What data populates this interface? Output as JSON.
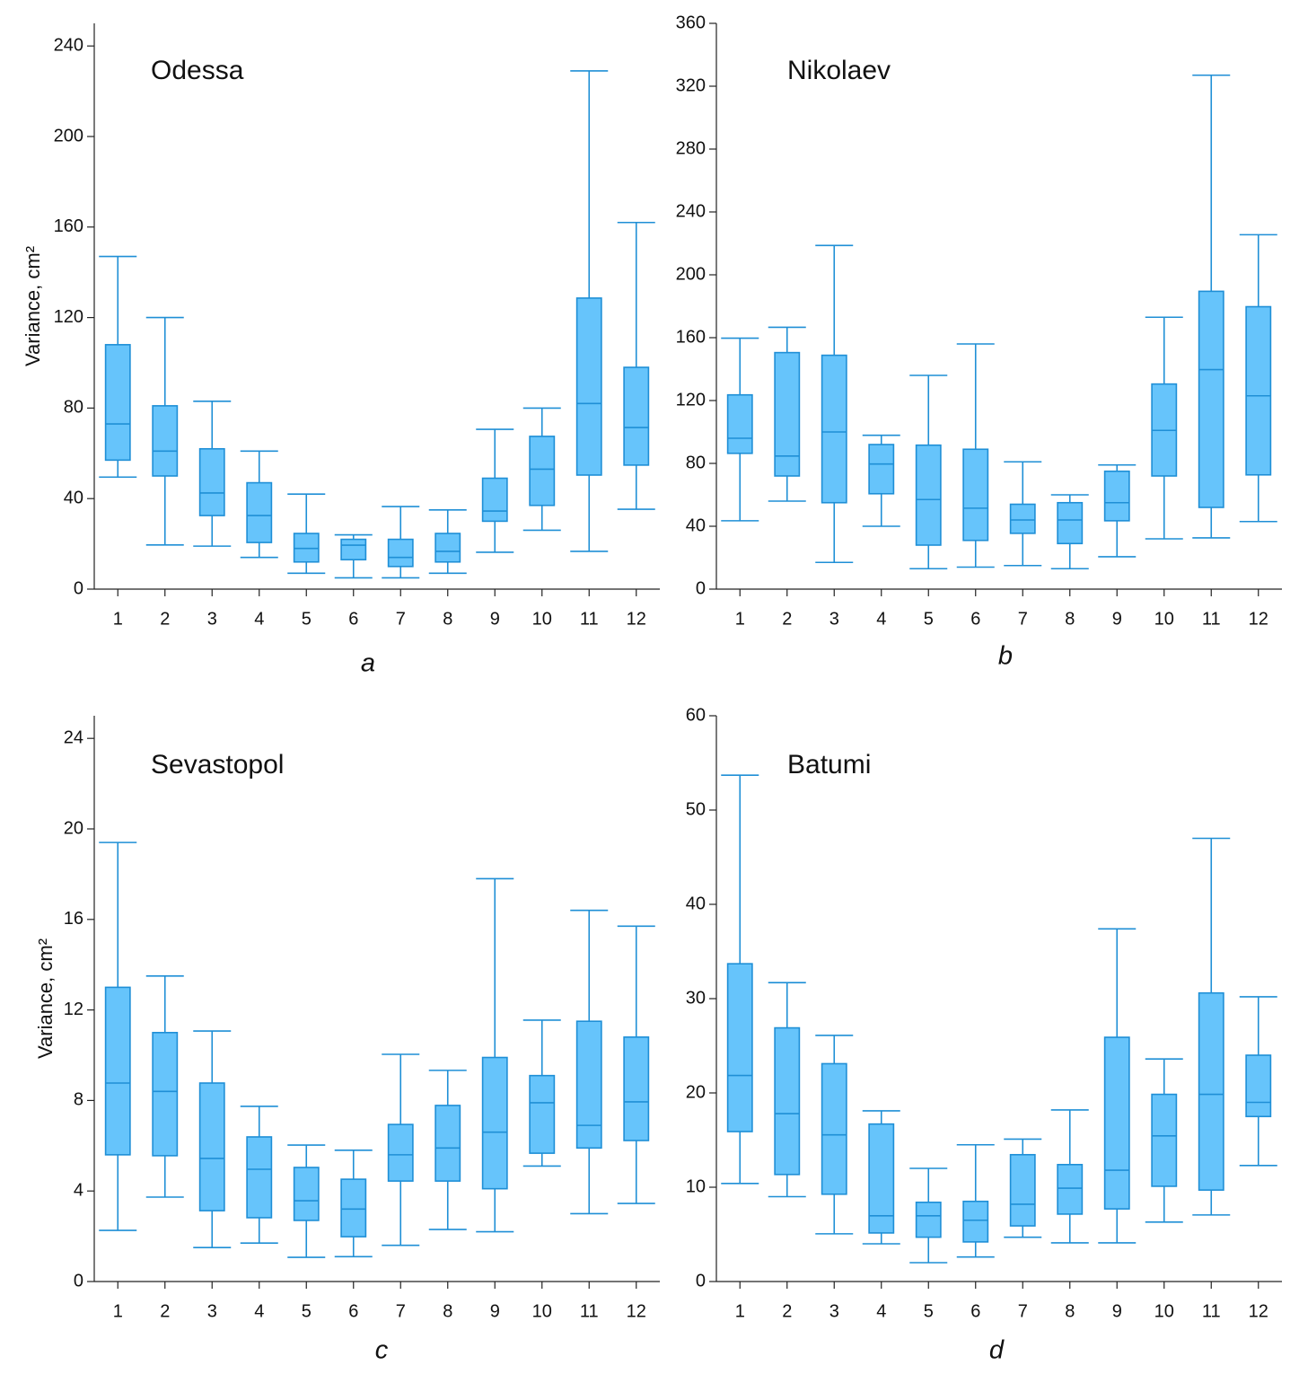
{
  "chart_data": [
    {
      "type": "box",
      "title": "Odessa",
      "label": "a",
      "ylabel": "Variance, cm²",
      "categories": [
        "1",
        "2",
        "3",
        "4",
        "5",
        "6",
        "7",
        "8",
        "9",
        "10",
        "11",
        "12"
      ],
      "color": "#66c4fb",
      "edge_color": "#1f8fd6",
      "ylim": [
        0,
        250
      ],
      "yticks": [
        0,
        40,
        80,
        120,
        160,
        200,
        240
      ],
      "boxes": [
        {
          "min": 49.5,
          "q1": 57,
          "median": 73,
          "q3": 108,
          "max": 147
        },
        {
          "min": 19.5,
          "q1": 50,
          "median": 61,
          "q3": 81,
          "max": 120
        },
        {
          "min": 19,
          "q1": 32.5,
          "median": 42.5,
          "q3": 62,
          "max": 83
        },
        {
          "min": 14,
          "q1": 20.6,
          "median": 32.5,
          "q3": 47,
          "max": 61
        },
        {
          "min": 7,
          "q1": 12,
          "median": 18,
          "q3": 24.6,
          "max": 42
        },
        {
          "min": 5,
          "q1": 13,
          "median": 19.4,
          "q3": 22,
          "max": 24
        },
        {
          "min": 5,
          "q1": 10,
          "median": 14,
          "q3": 22,
          "max": 36.5
        },
        {
          "min": 7,
          "q1": 12,
          "median": 16.7,
          "q3": 24.6,
          "max": 35
        },
        {
          "min": 16.3,
          "q1": 30,
          "median": 34.5,
          "q3": 49,
          "max": 70.6
        },
        {
          "min": 26,
          "q1": 37,
          "median": 53,
          "q3": 67.5,
          "max": 80
        },
        {
          "min": 16.7,
          "q1": 50.4,
          "median": 82,
          "q3": 128.6,
          "max": 229
        },
        {
          "min": 35.3,
          "q1": 54.8,
          "median": 71.4,
          "q3": 98,
          "max": 162
        }
      ]
    },
    {
      "type": "box",
      "title": "Nikolaev",
      "label": "b",
      "categories": [
        "1",
        "2",
        "3",
        "4",
        "5",
        "6",
        "7",
        "8",
        "9",
        "10",
        "11",
        "12"
      ],
      "color": "#66c4fb",
      "edge_color": "#1f8fd6",
      "ylim": [
        0,
        360
      ],
      "yticks": [
        0,
        40,
        80,
        120,
        160,
        200,
        240,
        280,
        320,
        360
      ],
      "boxes": [
        {
          "min": 43.5,
          "q1": 86.4,
          "median": 96,
          "q3": 123.6,
          "max": 159.7
        },
        {
          "min": 56,
          "q1": 72,
          "median": 84.7,
          "q3": 150.5,
          "max": 166.6
        },
        {
          "min": 17,
          "q1": 55,
          "median": 100,
          "q3": 148.8,
          "max": 218.7
        },
        {
          "min": 40,
          "q1": 60.7,
          "median": 79.6,
          "q3": 92,
          "max": 97.9
        },
        {
          "min": 13,
          "q1": 28,
          "median": 57,
          "q3": 91.6,
          "max": 136
        },
        {
          "min": 14,
          "q1": 31,
          "median": 51.5,
          "q3": 89,
          "max": 156
        },
        {
          "min": 15,
          "q1": 35.5,
          "median": 44,
          "q3": 54,
          "max": 81
        },
        {
          "min": 13,
          "q1": 29,
          "median": 44,
          "q3": 55,
          "max": 60
        },
        {
          "min": 20.6,
          "q1": 43.5,
          "median": 55,
          "q3": 75,
          "max": 79
        },
        {
          "min": 32,
          "q1": 72,
          "median": 101,
          "q3": 130.5,
          "max": 173
        },
        {
          "min": 32.6,
          "q1": 52,
          "median": 139.7,
          "q3": 189.5,
          "max": 327
        },
        {
          "min": 43,
          "q1": 72.7,
          "median": 123,
          "q3": 179.7,
          "max": 225.5
        }
      ]
    },
    {
      "type": "box",
      "title": "Sevastopol",
      "label": "c",
      "ylabel": "Variance, cm²",
      "categories": [
        "1",
        "2",
        "3",
        "4",
        "5",
        "6",
        "7",
        "8",
        "9",
        "10",
        "11",
        "12"
      ],
      "color": "#66c4fb",
      "edge_color": "#1f8fd6",
      "ylim": [
        0,
        25
      ],
      "yticks": [
        0,
        4,
        8,
        12,
        16,
        20,
        24
      ],
      "boxes": [
        {
          "min": 2.26,
          "q1": 5.6,
          "median": 8.77,
          "q3": 13,
          "max": 19.4
        },
        {
          "min": 3.73,
          "q1": 5.56,
          "median": 8.4,
          "q3": 11,
          "max": 13.5
        },
        {
          "min": 1.5,
          "q1": 3.13,
          "median": 5.44,
          "q3": 8.77,
          "max": 11.07
        },
        {
          "min": 1.7,
          "q1": 2.82,
          "median": 4.96,
          "q3": 6.39,
          "max": 7.74
        },
        {
          "min": 1.07,
          "q1": 2.7,
          "median": 3.57,
          "q3": 5.04,
          "max": 6.03
        },
        {
          "min": 1.1,
          "q1": 1.98,
          "median": 3.2,
          "q3": 4.52,
          "max": 5.8
        },
        {
          "min": 1.6,
          "q1": 4.44,
          "median": 5.6,
          "q3": 6.94,
          "max": 10.04
        },
        {
          "min": 2.3,
          "q1": 4.44,
          "median": 5.9,
          "q3": 7.78,
          "max": 9.33
        },
        {
          "min": 2.2,
          "q1": 4.1,
          "median": 6.6,
          "q3": 9.9,
          "max": 17.8
        },
        {
          "min": 5.1,
          "q1": 5.67,
          "median": 7.9,
          "q3": 9.1,
          "max": 11.55
        },
        {
          "min": 3.0,
          "q1": 5.9,
          "median": 6.9,
          "q3": 11.5,
          "max": 16.4
        },
        {
          "min": 3.45,
          "q1": 6.23,
          "median": 7.94,
          "q3": 10.8,
          "max": 15.7
        }
      ]
    },
    {
      "type": "box",
      "title": "Batumi",
      "label": "d",
      "categories": [
        "1",
        "2",
        "3",
        "4",
        "5",
        "6",
        "7",
        "8",
        "9",
        "10",
        "11",
        "12"
      ],
      "color": "#66c4fb",
      "edge_color": "#1f8fd6",
      "ylim": [
        0,
        60
      ],
      "yticks": [
        0,
        10,
        20,
        30,
        40,
        50,
        60
      ],
      "boxes": [
        {
          "min": 10.4,
          "q1": 15.9,
          "median": 21.85,
          "q3": 33.7,
          "max": 53.7
        },
        {
          "min": 9,
          "q1": 11.35,
          "median": 17.8,
          "q3": 26.9,
          "max": 31.7
        },
        {
          "min": 5.06,
          "q1": 9.26,
          "median": 15.55,
          "q3": 23.1,
          "max": 26.1
        },
        {
          "min": 4.0,
          "q1": 5.15,
          "median": 6.97,
          "q3": 16.7,
          "max": 18.1
        },
        {
          "min": 2.0,
          "q1": 4.7,
          "median": 6.97,
          "q3": 8.4,
          "max": 12.0
        },
        {
          "min": 2.6,
          "q1": 4.2,
          "median": 6.5,
          "q3": 8.5,
          "max": 14.5
        },
        {
          "min": 4.7,
          "q1": 5.9,
          "median": 8.2,
          "q3": 13.45,
          "max": 15.1
        },
        {
          "min": 4.1,
          "q1": 7.15,
          "median": 9.9,
          "q3": 12.4,
          "max": 18.2
        },
        {
          "min": 4.1,
          "q1": 7.7,
          "median": 11.8,
          "q3": 25.9,
          "max": 37.4
        },
        {
          "min": 6.3,
          "q1": 10.1,
          "median": 15.45,
          "q3": 19.85,
          "max": 23.6
        },
        {
          "min": 7.06,
          "q1": 9.7,
          "median": 19.85,
          "q3": 30.6,
          "max": 47.0
        },
        {
          "min": 12.3,
          "q1": 17.5,
          "median": 19.0,
          "q3": 24.0,
          "max": 30.2
        }
      ]
    }
  ]
}
